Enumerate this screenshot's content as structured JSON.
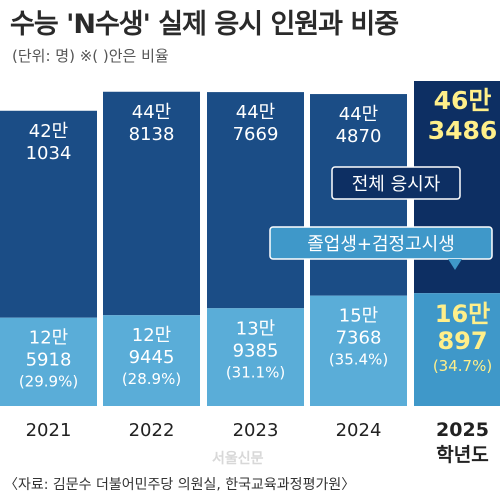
{
  "title": "수능 'N수생' 실제 응시 인원과 비중",
  "unit_note": "(단위: 명) ※( )안은 비율",
  "source": "〈자료: 김문수 더불어민주당 의원실, 한국교육과정평가원〉",
  "watermark": "서울신문",
  "x_suffix": "학년도",
  "colors": {
    "total": "#1b4d86",
    "total_highlight": "#0d2f63",
    "grad": "#5aadd8",
    "grad_highlight": "#3f98c9",
    "highlight_text": "#ffef8a"
  },
  "legend": {
    "total": "전체 응시자",
    "grad": "졸업생+검정고시생"
  },
  "chart_data": {
    "type": "bar",
    "categories": [
      "2021",
      "2022",
      "2023",
      "2024",
      "2025"
    ],
    "series": [
      {
        "name": "전체 응시자",
        "values": [
          421034,
          448138,
          447669,
          444870,
          463486
        ],
        "labels": [
          [
            "42만",
            "1034"
          ],
          [
            "44만",
            "8138"
          ],
          [
            "44만",
            "7669"
          ],
          [
            "44만",
            "4870"
          ],
          [
            "46만",
            "3486"
          ]
        ]
      },
      {
        "name": "졸업생+검정고시생",
        "values": [
          125918,
          129445,
          139385,
          157368,
          160897
        ],
        "labels": [
          [
            "12만",
            "5918"
          ],
          [
            "12만",
            "9445"
          ],
          [
            "13만",
            "9385"
          ],
          [
            "15만",
            "7368"
          ],
          [
            "16만",
            "897"
          ]
        ],
        "percent": [
          "(29.9%)",
          "(28.9%)",
          "(31.1%)",
          "(35.4%)",
          "(34.7%)"
        ]
      }
    ],
    "highlight_index": 4
  }
}
